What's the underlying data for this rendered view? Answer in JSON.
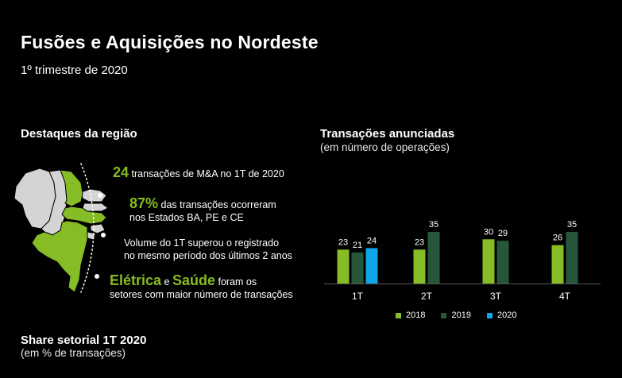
{
  "header": {
    "title": "Fusões e Aquisições no Nordeste",
    "subtitle": "1º trimestre de 2020"
  },
  "highlights": {
    "heading": "Destaques da região",
    "items": [
      {
        "big": "24",
        "text": "transações de M&A no 1T de 2020"
      },
      {
        "big": "87%",
        "text_line1": "das transações ocorreram",
        "text_line2": "nos Estados BA, PE e CE"
      },
      {
        "text_line1": "Volume do 1T superou o registrado",
        "text_line2": "no mesmo período dos últimos 2 anos"
      },
      {
        "big1": "Elétrica",
        "connector": "e",
        "big2": "Saúde",
        "text_line1": "foram os",
        "text_line2": "setores com maior número de transações"
      }
    ]
  },
  "transactions": {
    "heading": "Transações anunciadas",
    "subheading": "(em número de operações)"
  },
  "share": {
    "heading": "Share setorial 1T 2020",
    "subheading": "(em % de transações)"
  },
  "colors": {
    "accent_green": "#86bc25",
    "dark_green": "#26573a",
    "blue": "#0ea5e9",
    "map_gray": "#d4d4d4"
  },
  "chart_data": {
    "type": "bar",
    "categories": [
      "1T",
      "2T",
      "3T",
      "4T"
    ],
    "series": [
      {
        "name": "2018",
        "values": [
          23,
          23,
          30,
          26
        ],
        "color": "#86bc25"
      },
      {
        "name": "2019",
        "values": [
          21,
          35,
          29,
          35
        ],
        "color": "#26573a"
      },
      {
        "name": "2020",
        "values": [
          24,
          null,
          null,
          null
        ],
        "color": "#0ea5e9"
      }
    ],
    "ylim": [
      0,
      35
    ],
    "grid": false,
    "legend": "bottom"
  }
}
